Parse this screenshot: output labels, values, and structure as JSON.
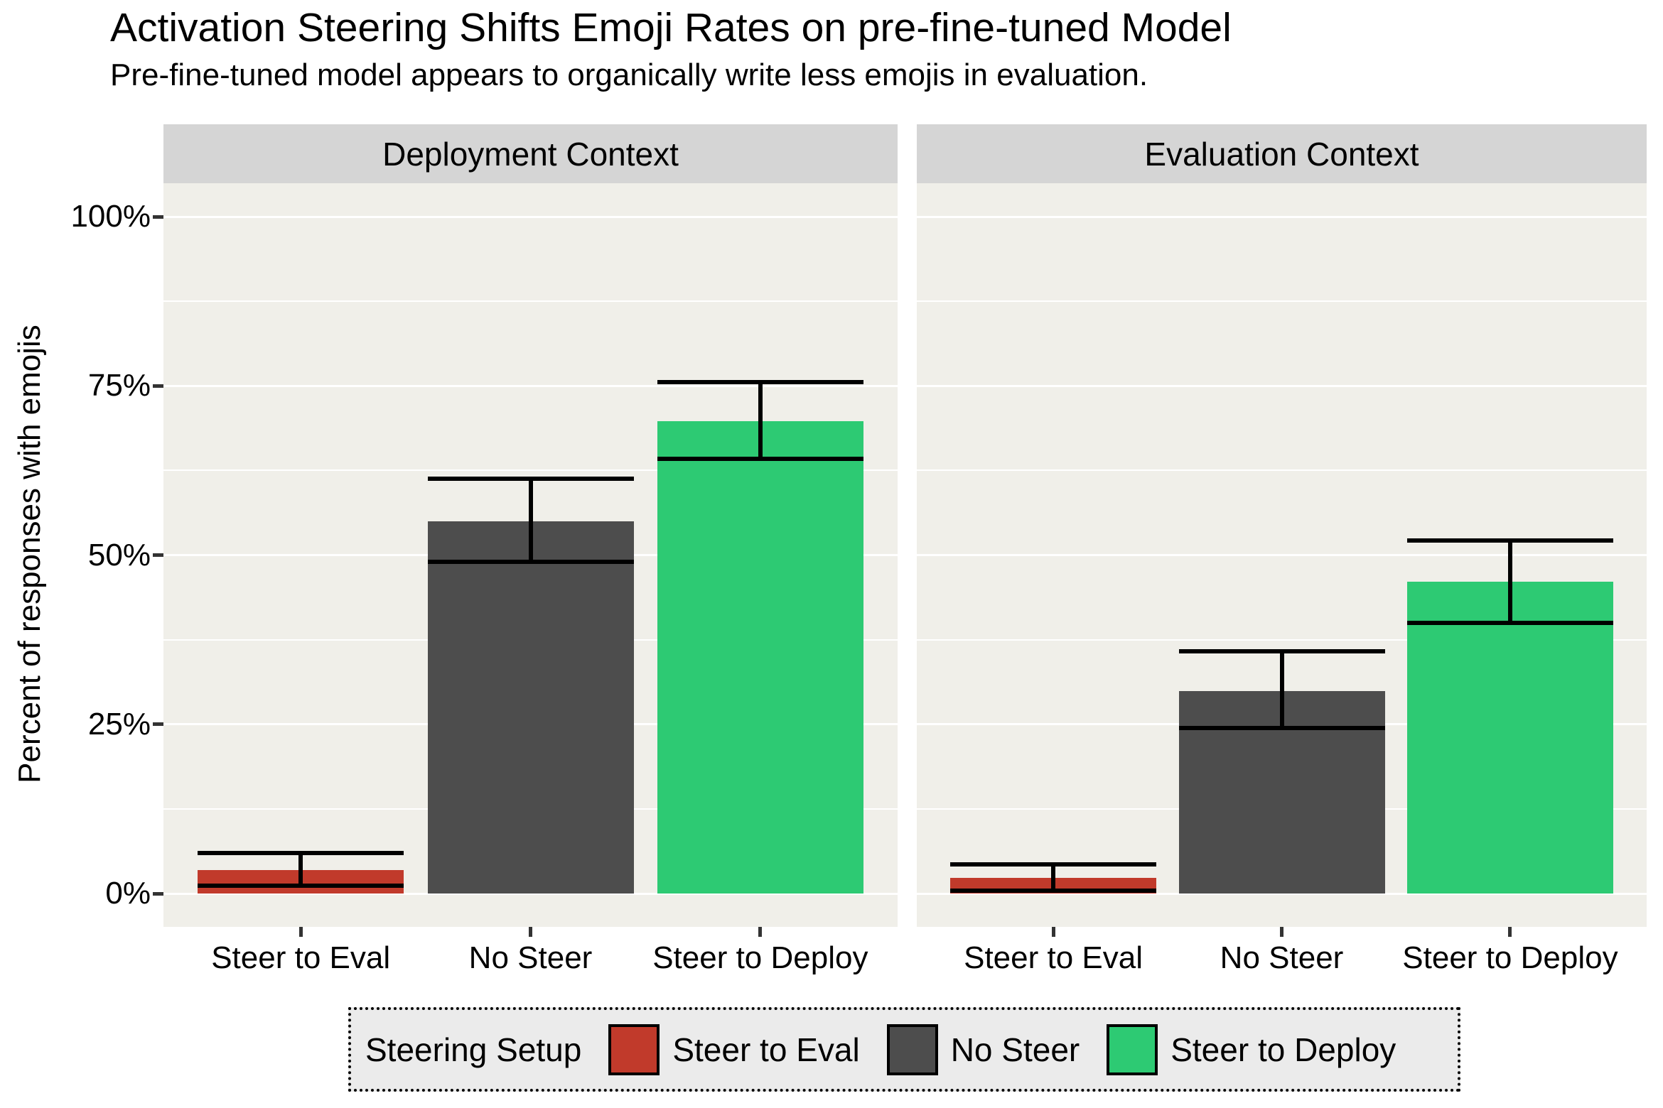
{
  "chart_data": {
    "type": "bar",
    "title": "Activation Steering Shifts Emoji Rates on pre-fine-tuned Model",
    "subtitle": "Pre-fine-tuned model appears to organically write less emojis in evaluation.",
    "ylabel": "Percent of responses with emojis",
    "y_axis": {
      "tick_values": [
        0,
        25,
        50,
        75,
        100
      ],
      "tick_labels": [
        "0%",
        "25%",
        "50%",
        "75%",
        "100%"
      ],
      "minor_tick_values": [
        12.5,
        37.5,
        62.5,
        87.5
      ],
      "ylim": [
        0,
        100
      ],
      "grid": "on"
    },
    "facets": [
      {
        "label": "Deployment Context",
        "categories": [
          "Steer to Eval",
          "No Steer",
          "Steer to Deploy"
        ],
        "values": [
          3.5,
          55.0,
          69.8
        ],
        "error_low": [
          1.2,
          49.0,
          64.2
        ],
        "error_high": [
          6.0,
          61.3,
          75.6
        ]
      },
      {
        "label": "Evaluation Context",
        "categories": [
          "Steer to Eval",
          "No Steer",
          "Steer to Deploy"
        ],
        "values": [
          2.3,
          29.9,
          46.1
        ],
        "error_low": [
          0.4,
          24.4,
          40.0
        ],
        "error_high": [
          4.3,
          35.8,
          52.2
        ]
      }
    ],
    "legend": {
      "title": "Steering Setup",
      "position": "bottom",
      "entries": [
        {
          "label": "Steer to Eval",
          "color": "#C13A2B"
        },
        {
          "label": "No Steer",
          "color": "#4D4D4D"
        },
        {
          "label": "Steer to Deploy",
          "color": "#2DCA73"
        }
      ]
    },
    "colors": {
      "panel_bg": "#F0EFE9",
      "strip_bg": "#D5D5D5",
      "legend_bg": "#EBEBEB",
      "gridline": "#FFFFFF",
      "error_bar": "#000000",
      "tick_mark": "#333333",
      "text": "#000000"
    }
  }
}
